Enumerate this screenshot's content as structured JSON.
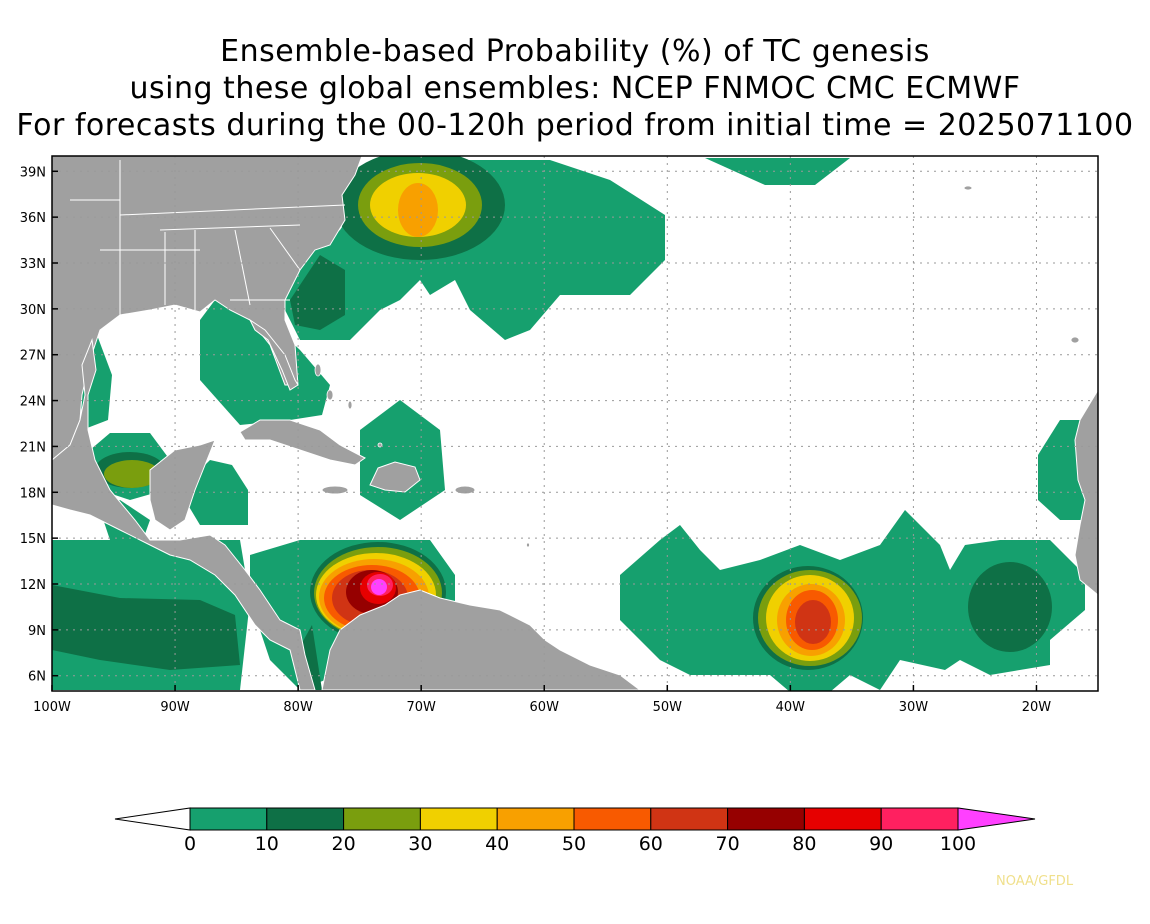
{
  "title": {
    "line1": "Ensemble-based Probability (%) of TC genesis",
    "line2": "using these global ensembles:   NCEP FNMOC CMC ECMWF",
    "line3": "For forecasts during the 00-120h period from initial time = 2025071100"
  },
  "map": {
    "lon_range": [
      -100,
      -15
    ],
    "lat_range": [
      5,
      40
    ],
    "lon_ticks": [
      "100W",
      "90W",
      "80W",
      "70W",
      "60W",
      "50W",
      "40W",
      "30W",
      "20W"
    ],
    "lat_ticks": [
      "39N",
      "36N",
      "33N",
      "30N",
      "27N",
      "24N",
      "21N",
      "18N",
      "15N",
      "12N",
      "9N",
      "6N"
    ],
    "land_color": "#a0a0a0",
    "coast_color": "#ffffff",
    "grid": "dotted"
  },
  "colorbar": {
    "labels": [
      "0",
      "10",
      "20",
      "30",
      "40",
      "50",
      "60",
      "70",
      "80",
      "90",
      "100"
    ],
    "colors": [
      "#16a06e",
      "#0e7046",
      "#7a9e0e",
      "#f0d000",
      "#f8a000",
      "#f85a00",
      "#d03414",
      "#960000",
      "#e60000",
      "#ff2060",
      "#ff40ff"
    ]
  },
  "credit": "NOAA/GFDL"
}
